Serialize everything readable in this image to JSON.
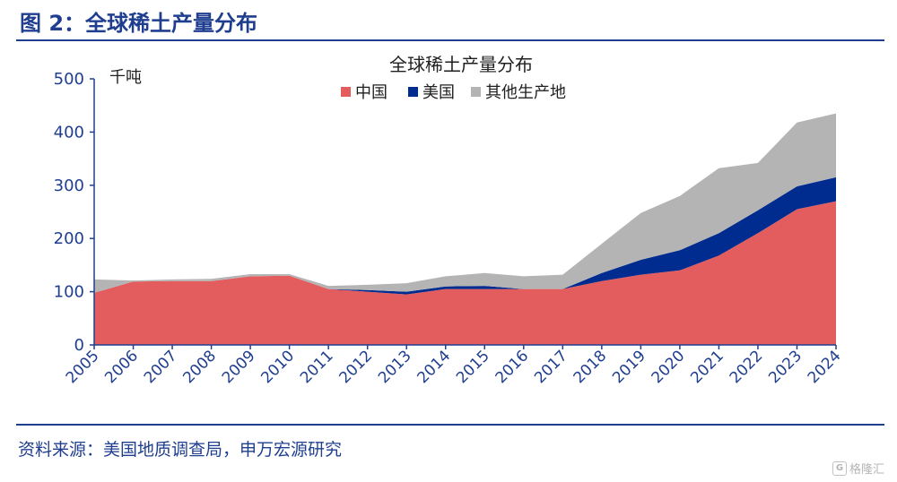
{
  "figure_title": "图 2：全球稀土产量分布",
  "source": "资料来源：美国地质调查局，申万宏源研究",
  "watermark": "格隆汇",
  "watermark_icon": "g-logo-icon",
  "chart_data": {
    "type": "area",
    "stacked": true,
    "title": "全球稀土产量分布",
    "unit_label": "千吨",
    "x": [
      "2005",
      "2006",
      "2007",
      "2008",
      "2009",
      "2010",
      "2011",
      "2012",
      "2013",
      "2014",
      "2015",
      "2016",
      "2017",
      "2018",
      "2019",
      "2020",
      "2021",
      "2022",
      "2023",
      "2024"
    ],
    "series": [
      {
        "name": "中国",
        "color": "#e35d5f",
        "values": [
          98,
          119,
          120,
          120,
          129,
          130,
          105,
          100,
          95,
          105,
          105,
          105,
          105,
          120,
          132,
          140,
          168,
          210,
          255,
          270
        ]
      },
      {
        "name": "美国",
        "color": "#002b8f",
        "values": [
          0,
          0,
          0,
          0,
          0,
          0,
          0,
          3,
          5,
          5,
          6,
          0,
          0,
          15,
          28,
          38,
          42,
          43,
          43,
          45
        ]
      },
      {
        "name": "其他生产地",
        "color": "#b4b4b4",
        "values": [
          25,
          2,
          3,
          4,
          4,
          3,
          6,
          10,
          16,
          19,
          24,
          24,
          27,
          55,
          88,
          102,
          122,
          89,
          120,
          120
        ]
      }
    ],
    "ylim": [
      0,
      500
    ],
    "yticks": [
      0,
      100,
      200,
      300,
      400,
      500
    ],
    "grid": false,
    "legend": "top-center"
  }
}
